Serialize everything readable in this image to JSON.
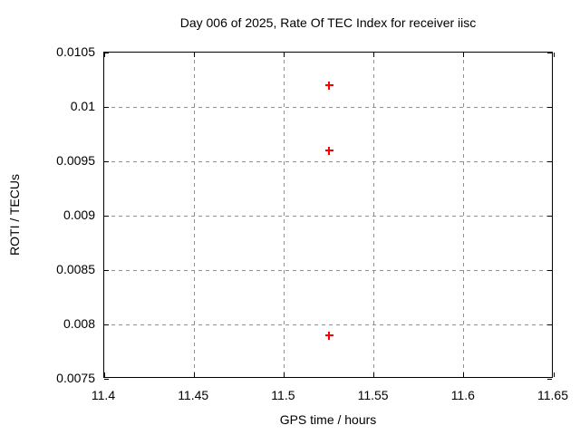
{
  "colors": {
    "background": "#ffffff",
    "axis": "#000000",
    "grid": "#909090",
    "marker": "#ff0000",
    "text": "#000000"
  },
  "chart_data": {
    "type": "scatter",
    "title": "Day 006 of 2025, Rate Of TEC Index for receiver iisc",
    "xlabel": "GPS time / hours",
    "ylabel": "ROTI / TECUs",
    "xlim": [
      11.4,
      11.65
    ],
    "ylim": [
      0.0075,
      0.0105
    ],
    "xticks": [
      {
        "value": 11.4,
        "label": "11.4"
      },
      {
        "value": 11.45,
        "label": "11.45"
      },
      {
        "value": 11.5,
        "label": "11.5"
      },
      {
        "value": 11.55,
        "label": "11.55"
      },
      {
        "value": 11.6,
        "label": "11.6"
      },
      {
        "value": 11.65,
        "label": "11.65"
      }
    ],
    "yticks": [
      {
        "value": 0.0075,
        "label": "0.0075"
      },
      {
        "value": 0.008,
        "label": "0.008"
      },
      {
        "value": 0.0085,
        "label": "0.0085"
      },
      {
        "value": 0.009,
        "label": "0.009"
      },
      {
        "value": 0.0095,
        "label": "0.0095"
      },
      {
        "value": 0.01,
        "label": "0.01"
      },
      {
        "value": 0.0105,
        "label": "0.0105"
      }
    ],
    "grid": true,
    "legend_position": "none",
    "marker_shape": "plus",
    "series": [
      {
        "name": "ROTI",
        "points": [
          {
            "x": 11.525,
            "y": 0.0102
          },
          {
            "x": 11.525,
            "y": 0.0096
          },
          {
            "x": 11.525,
            "y": 0.0079
          }
        ]
      }
    ]
  }
}
